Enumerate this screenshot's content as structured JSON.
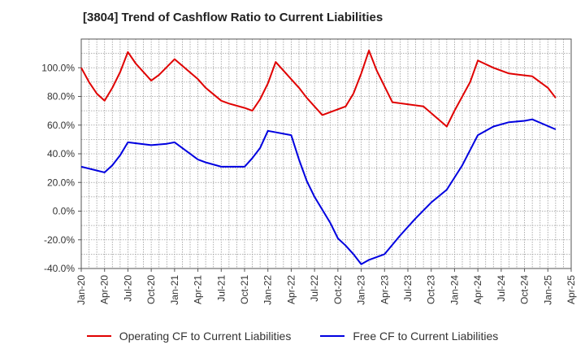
{
  "chart_data": {
    "type": "line",
    "title": "[3804]  Trend of Cashflow Ratio to Current Liabilities",
    "xlabel": "",
    "ylabel": "",
    "ylim": [
      -40,
      120
    ],
    "y_ticks": [
      -40,
      -20,
      0,
      20,
      40,
      60,
      80,
      100
    ],
    "y_tick_labels": [
      "-40.0%",
      "-20.0%",
      "0.0%",
      "20.0%",
      "40.0%",
      "60.0%",
      "80.0%",
      "100.0%"
    ],
    "x_tick_labels": [
      "Jan-20",
      "Apr-20",
      "Jul-20",
      "Oct-20",
      "Jan-21",
      "Apr-21",
      "Jul-21",
      "Oct-21",
      "Jan-22",
      "Apr-22",
      "Jul-22",
      "Oct-22",
      "Jan-23",
      "Apr-23",
      "Jul-23",
      "Oct-23",
      "Jan-24",
      "Apr-24",
      "Jul-24",
      "Oct-24",
      "Jan-25",
      "Apr-25"
    ],
    "grid": true,
    "legend_position": "bottom",
    "series": [
      {
        "name": "Operating CF to Current Liabilities",
        "color": "#e00000",
        "points": [
          [
            0,
            100
          ],
          [
            1,
            90
          ],
          [
            2,
            82
          ],
          [
            3,
            77
          ],
          [
            4,
            86
          ],
          [
            5,
            97
          ],
          [
            6,
            111
          ],
          [
            7,
            103
          ],
          [
            9,
            91
          ],
          [
            10,
            95
          ],
          [
            12,
            106
          ],
          [
            15,
            92
          ],
          [
            16,
            86
          ],
          [
            18,
            77
          ],
          [
            19,
            75
          ],
          [
            21,
            72
          ],
          [
            22,
            70
          ],
          [
            23,
            78
          ],
          [
            24,
            89
          ],
          [
            25,
            104
          ],
          [
            26,
            98
          ],
          [
            28,
            86
          ],
          [
            29,
            79
          ],
          [
            31,
            67
          ],
          [
            34,
            73
          ],
          [
            35,
            82
          ],
          [
            36,
            96
          ],
          [
            37,
            112
          ],
          [
            38,
            98
          ],
          [
            40,
            76
          ],
          [
            44,
            73
          ],
          [
            47,
            59
          ],
          [
            48,
            70
          ],
          [
            50,
            90
          ],
          [
            51,
            105
          ],
          [
            53,
            100
          ],
          [
            55,
            96
          ],
          [
            58,
            94
          ],
          [
            60,
            86
          ],
          [
            61,
            79
          ]
        ]
      },
      {
        "name": "Free CF to Current Liabilities",
        "color": "#0000e0",
        "points": [
          [
            0,
            31
          ],
          [
            3,
            27
          ],
          [
            4,
            32
          ],
          [
            5,
            39
          ],
          [
            6,
            48
          ],
          [
            9,
            46
          ],
          [
            11,
            47
          ],
          [
            12,
            48
          ],
          [
            15,
            36
          ],
          [
            16,
            34
          ],
          [
            18,
            31
          ],
          [
            21,
            31
          ],
          [
            22,
            37
          ],
          [
            23,
            44
          ],
          [
            24,
            56
          ],
          [
            27,
            53
          ],
          [
            28,
            36
          ],
          [
            29,
            21
          ],
          [
            30,
            10
          ],
          [
            32,
            -8
          ],
          [
            33,
            -19
          ],
          [
            34,
            -24
          ],
          [
            35,
            -30
          ],
          [
            36,
            -37
          ],
          [
            37,
            -34
          ],
          [
            39,
            -30
          ],
          [
            41,
            -17
          ],
          [
            43,
            -5
          ],
          [
            45,
            6
          ],
          [
            47,
            15
          ],
          [
            49,
            32
          ],
          [
            51,
            53
          ],
          [
            53,
            59
          ],
          [
            55,
            62
          ],
          [
            57,
            63
          ],
          [
            58,
            64
          ],
          [
            61,
            57
          ]
        ]
      }
    ]
  }
}
